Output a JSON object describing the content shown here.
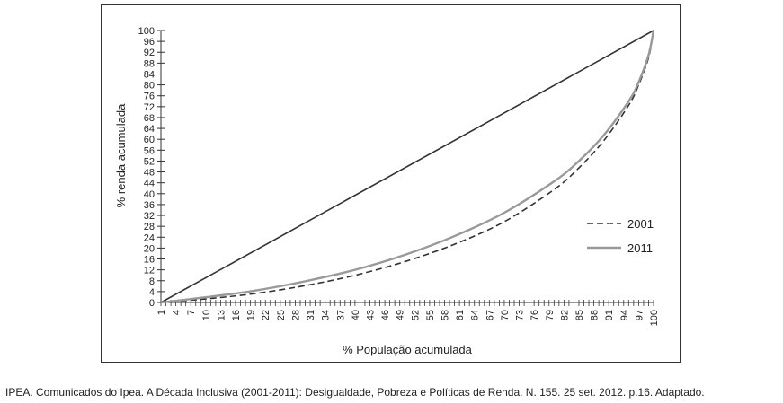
{
  "chart_data": {
    "type": "line",
    "title": "",
    "xlabel": "% População acumulada",
    "ylabel": "% renda acumulada",
    "xlim": [
      1,
      100
    ],
    "ylim": [
      0,
      100
    ],
    "x_ticks": [
      "1",
      "4",
      "7",
      "10",
      "13",
      "16",
      "19",
      "22",
      "25",
      "28",
      "31",
      "34",
      "37",
      "40",
      "43",
      "46",
      "49",
      "52",
      "55",
      "58",
      "61",
      "64",
      "67",
      "70",
      "73",
      "76",
      "79",
      "82",
      "85",
      "88",
      "91",
      "94",
      "97",
      "100"
    ],
    "y_ticks": [
      "0",
      "4",
      "8",
      "12",
      "16",
      "20",
      "24",
      "28",
      "32",
      "36",
      "40",
      "44",
      "48",
      "52",
      "56",
      "60",
      "64",
      "68",
      "72",
      "76",
      "80",
      "84",
      "88",
      "92",
      "96",
      "100"
    ],
    "grid": false,
    "legend_position": "right",
    "equality_line": {
      "x": [
        1,
        100
      ],
      "y": [
        0,
        100
      ]
    },
    "series": [
      {
        "name": "2001",
        "style": "dashed",
        "color": "#333333",
        "x": [
          1,
          10,
          20,
          30,
          40,
          50,
          60,
          70,
          80,
          85,
          90,
          95,
          97,
          99,
          100
        ],
        "y": [
          0,
          1.3,
          3.3,
          6.2,
          10,
          15,
          21.4,
          29.7,
          41.5,
          49.5,
          59.5,
          72.5,
          80,
          90,
          100
        ]
      },
      {
        "name": "2011",
        "style": "solid",
        "color": "#999999",
        "x": [
          1,
          10,
          20,
          30,
          40,
          50,
          60,
          70,
          80,
          85,
          90,
          95,
          97,
          99,
          100
        ],
        "y": [
          0,
          1.9,
          4.4,
          7.8,
          12,
          17.5,
          24.4,
          33,
          44.5,
          52,
          61.5,
          74,
          81,
          91,
          100
        ]
      }
    ]
  },
  "source_note": "IPEA. Comunicados do Ipea. A Década Inclusiva (2001-2011): Desigualdade, Pobreza e Políticas de Renda. N. 155. 25 set. 2012. p.16. Adaptado."
}
